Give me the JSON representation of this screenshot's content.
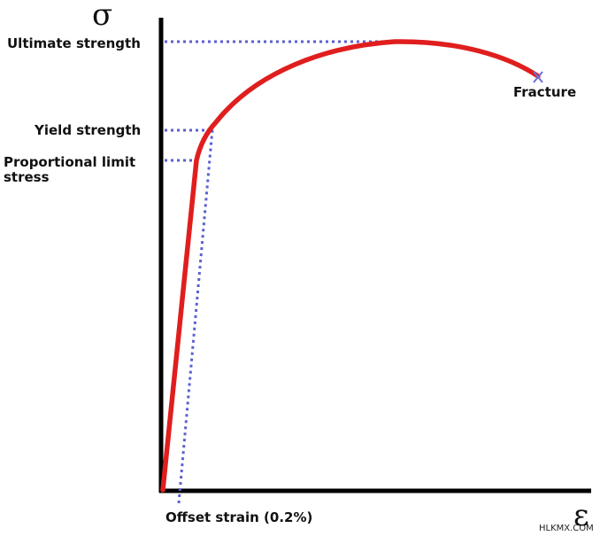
{
  "diagram": {
    "axis_y_symbol": "σ",
    "axis_x_symbol": "ε",
    "labels": {
      "ultimate_strength": "Ultimate strength",
      "yield_strength": "Yield strength",
      "proportional_limit_line1": "Proportional limit",
      "proportional_limit_line2": "stress",
      "fracture": "Fracture",
      "offset_strain": "Offset strain (0.2%)"
    },
    "watermark": "HLKMX.COM"
  },
  "colors": {
    "curve": "#e01e1e",
    "guide_lines": "#5a5fd0",
    "axes": "#000000",
    "fracture_marker": "#6a6fd6"
  }
}
